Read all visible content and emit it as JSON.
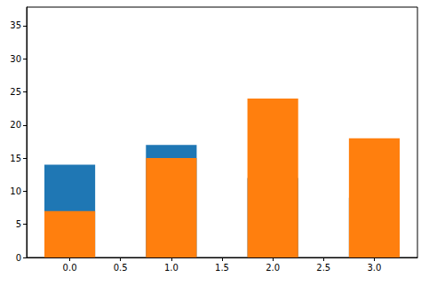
{
  "chart_data": {
    "type": "bar",
    "stacked": true,
    "grid": false,
    "x": [
      0,
      1,
      2,
      3
    ],
    "series": [
      {
        "color": "#1f77b4",
        "values": [
          14,
          17,
          12,
          9
        ]
      },
      {
        "color": "#ff7f0e",
        "values": [
          7,
          15,
          24,
          18
        ]
      }
    ],
    "xlim": [
      -0.425,
      3.425
    ],
    "xticks": [
      {
        "value": 0,
        "label": "0.0"
      },
      {
        "value": 0.5,
        "label": "0.5"
      },
      {
        "value": 1,
        "label": "1.0"
      },
      {
        "value": 1.5,
        "label": "1.5"
      },
      {
        "value": 2,
        "label": "2.0"
      },
      {
        "value": 2.5,
        "label": "2.5"
      },
      {
        "value": 3,
        "label": "3.0"
      }
    ],
    "ylim": [
      0,
      37.8
    ],
    "yticks": [
      0,
      5,
      10,
      15,
      20,
      25,
      30,
      35
    ]
  }
}
